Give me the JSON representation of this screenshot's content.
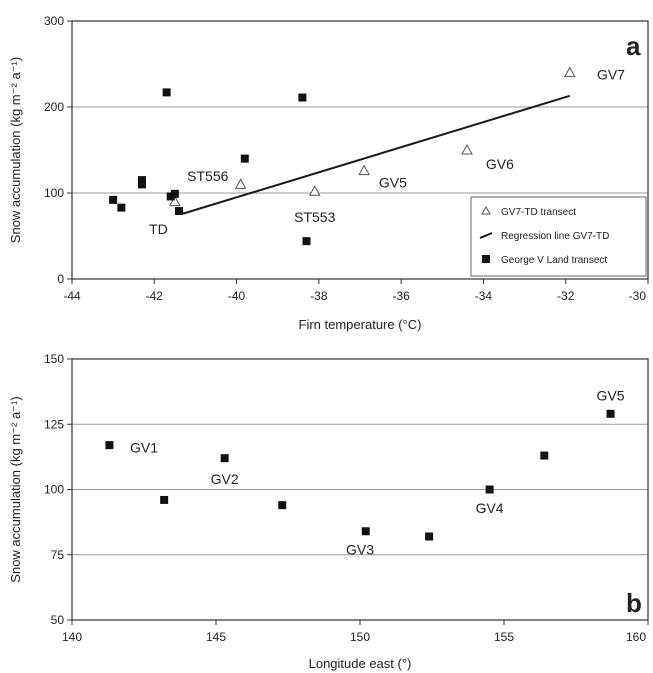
{
  "chart_data": [
    {
      "type": "scatter",
      "panel_label": "a",
      "xlabel": "Firn temperature (°C)",
      "ylabel": "Snow accumulation (kg m⁻² a⁻¹)",
      "xlim": [
        -44,
        -30
      ],
      "ylim": [
        0,
        300
      ],
      "xticks": [
        "-44",
        "-42",
        "-40",
        "-38",
        "-36",
        "-34",
        "-32",
        "-30"
      ],
      "yticks": [
        "0",
        "100",
        "200",
        "300"
      ],
      "grid": "horizontal",
      "legend_position": "lower-right",
      "series": [
        {
          "name": "GV7-TD transect",
          "marker": "open-triangle",
          "points": [
            {
              "x": -41.5,
              "y": 90
            },
            {
              "x": -39.9,
              "y": 110
            },
            {
              "x": -38.1,
              "y": 102
            },
            {
              "x": -36.9,
              "y": 126
            },
            {
              "x": -34.4,
              "y": 150
            },
            {
              "x": -31.9,
              "y": 240
            }
          ]
        },
        {
          "name": "Regression line GV7-TD",
          "marker": "line",
          "points": [
            {
              "x": -41.3,
              "y": 76
            },
            {
              "x": -31.9,
              "y": 213
            }
          ]
        },
        {
          "name": "George V Land transect",
          "marker": "filled-square",
          "points": [
            {
              "x": -43.0,
              "y": 92
            },
            {
              "x": -42.8,
              "y": 83
            },
            {
              "x": -42.3,
              "y": 115
            },
            {
              "x": -42.3,
              "y": 110
            },
            {
              "x": -41.7,
              "y": 217
            },
            {
              "x": -41.6,
              "y": 96
            },
            {
              "x": -41.5,
              "y": 99
            },
            {
              "x": -41.4,
              "y": 79
            },
            {
              "x": -39.8,
              "y": 140
            },
            {
              "x": -38.4,
              "y": 211
            },
            {
              "x": -38.3,
              "y": 44
            }
          ]
        }
      ],
      "annotations": [
        {
          "text": "TD",
          "x": -41.9,
          "y": 58
        },
        {
          "text": "ST556",
          "x": -40.7,
          "y": 120
        },
        {
          "text": "ST553",
          "x": -38.1,
          "y": 72
        },
        {
          "text": "GV5",
          "x": -36.2,
          "y": 112
        },
        {
          "text": "GV6",
          "x": -33.6,
          "y": 134
        },
        {
          "text": "GV7",
          "x": -30.9,
          "y": 238
        }
      ]
    },
    {
      "type": "scatter",
      "panel_label": "b",
      "xlabel": "Longitude east (°)",
      "ylabel": "Snow accumulation (kg m⁻² a⁻¹)",
      "xlim": [
        140,
        160
      ],
      "ylim": [
        50,
        150
      ],
      "xticks": [
        "140",
        "145",
        "150",
        "155",
        "160"
      ],
      "yticks": [
        "50",
        "75",
        "100",
        "125",
        "150"
      ],
      "grid": "horizontal",
      "series": [
        {
          "name": "",
          "marker": "filled-square",
          "points": [
            {
              "x": 141.3,
              "y": 117
            },
            {
              "x": 143.2,
              "y": 96
            },
            {
              "x": 145.3,
              "y": 112
            },
            {
              "x": 147.3,
              "y": 94
            },
            {
              "x": 150.2,
              "y": 84
            },
            {
              "x": 152.4,
              "y": 82
            },
            {
              "x": 154.5,
              "y": 100
            },
            {
              "x": 156.4,
              "y": 113
            },
            {
              "x": 158.7,
              "y": 129
            }
          ]
        }
      ],
      "annotations": [
        {
          "text": "GV1",
          "x": 142.5,
          "y": 116
        },
        {
          "text": "GV2",
          "x": 145.3,
          "y": 104
        },
        {
          "text": "GV3",
          "x": 150.0,
          "y": 77
        },
        {
          "text": "GV4",
          "x": 154.5,
          "y": 93
        },
        {
          "text": "GV5",
          "x": 158.7,
          "y": 136
        }
      ]
    }
  ]
}
